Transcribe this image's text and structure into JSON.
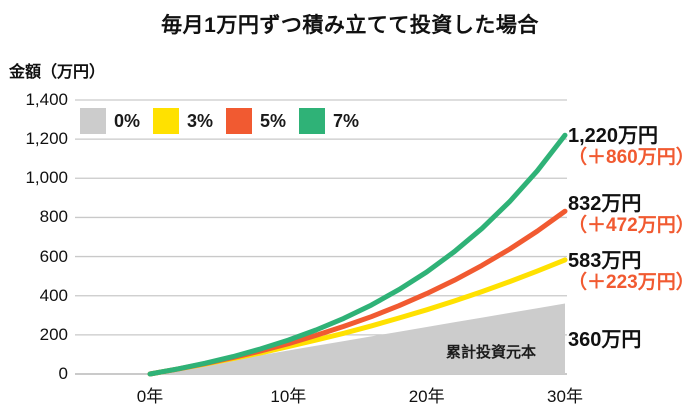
{
  "chart_data": {
    "type": "line",
    "title": "毎月1万円ずつ積み立てて投資した場合",
    "ylabel": "金額（万円）",
    "area_label": "累計投資元本",
    "x_years": [
      0,
      2,
      4,
      6,
      8,
      10,
      12,
      14,
      16,
      18,
      20,
      22,
      24,
      26,
      28,
      30
    ],
    "xlim": [
      0,
      30
    ],
    "ylim": [
      0,
      1400
    ],
    "xticks": [
      {
        "value": 0,
        "label": "0年"
      },
      {
        "value": 10,
        "label": "10年"
      },
      {
        "value": 20,
        "label": "20年"
      },
      {
        "value": 30,
        "label": "30年"
      }
    ],
    "yticks": [
      {
        "value": 0,
        "label": "0"
      },
      {
        "value": 200,
        "label": "200"
      },
      {
        "value": 400,
        "label": "400"
      },
      {
        "value": 600,
        "label": "600"
      },
      {
        "value": 800,
        "label": "800"
      },
      {
        "value": 1000,
        "label": "1,000"
      },
      {
        "value": 1200,
        "label": "1,200"
      },
      {
        "value": 1400,
        "label": "1,400"
      }
    ],
    "grid": true,
    "legend_position": "top-left",
    "series": [
      {
        "name": "0%",
        "color": "#cccccc",
        "style": "area",
        "values": [
          0,
          24,
          48,
          72,
          96,
          120,
          144,
          168,
          192,
          216,
          240,
          264,
          288,
          312,
          336,
          360
        ]
      },
      {
        "name": "3%",
        "color": "#ffe100",
        "style": "line",
        "values": [
          0,
          25,
          51,
          79,
          108,
          140,
          173,
          208,
          246,
          286,
          328,
          373,
          421,
          472,
          526,
          583
        ]
      },
      {
        "name": "5%",
        "color": "#f15a31",
        "style": "line",
        "values": [
          0,
          25,
          53,
          84,
          118,
          155,
          197,
          243,
          293,
          349,
          411,
          479,
          555,
          638,
          730,
          832
        ]
      },
      {
        "name": "7%",
        "color": "#2fb277",
        "style": "line",
        "values": [
          0,
          26,
          55,
          89,
          128,
          173,
          225,
          284,
          352,
          431,
          521,
          625,
          744,
          881,
          1038,
          1220
        ]
      }
    ],
    "annotations": [
      {
        "rate": "7%",
        "value": "1,220万円",
        "gain": "（＋860万円）",
        "top": 125
      },
      {
        "rate": "5%",
        "value": "832万円",
        "gain": "（＋472万円）",
        "top": 193
      },
      {
        "rate": "3%",
        "value": "583万円",
        "gain": "（＋223万円）",
        "top": 250
      },
      {
        "rate": "0%",
        "value": "360万円",
        "gain": "",
        "top": 329
      }
    ],
    "colors": {
      "gain_text": "#f15a31",
      "grid_line": "#c9c9c9",
      "baseline": "#aaaaaa",
      "text": "#111111"
    }
  }
}
